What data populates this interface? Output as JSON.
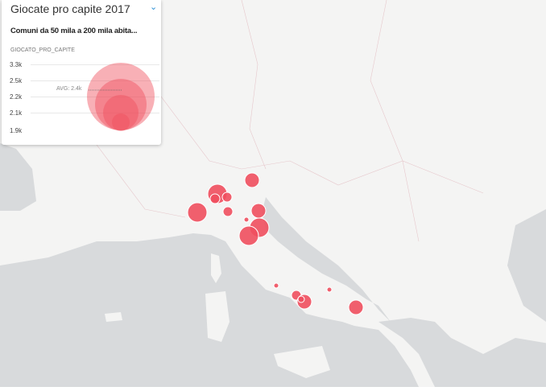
{
  "panel": {
    "title": "Giocate pro capite 2017",
    "subtitle": "Comuni da 50 mila a 200 mila abita...",
    "field": "GIOCATO_PRO_CAPITE",
    "ticks": [
      "3.3k",
      "2.5k",
      "2.2k",
      "2.1k",
      "1.9k"
    ],
    "avg_label": "AVG: 2.4k",
    "toggle_icon": "chevron-down-icon"
  },
  "colors": {
    "bubble": "#ef4f5e",
    "sea": "#d9dbdd",
    "land": "#f4f4f3"
  },
  "legend_values": [
    3300,
    2500,
    2200,
    2100,
    1900
  ]
}
